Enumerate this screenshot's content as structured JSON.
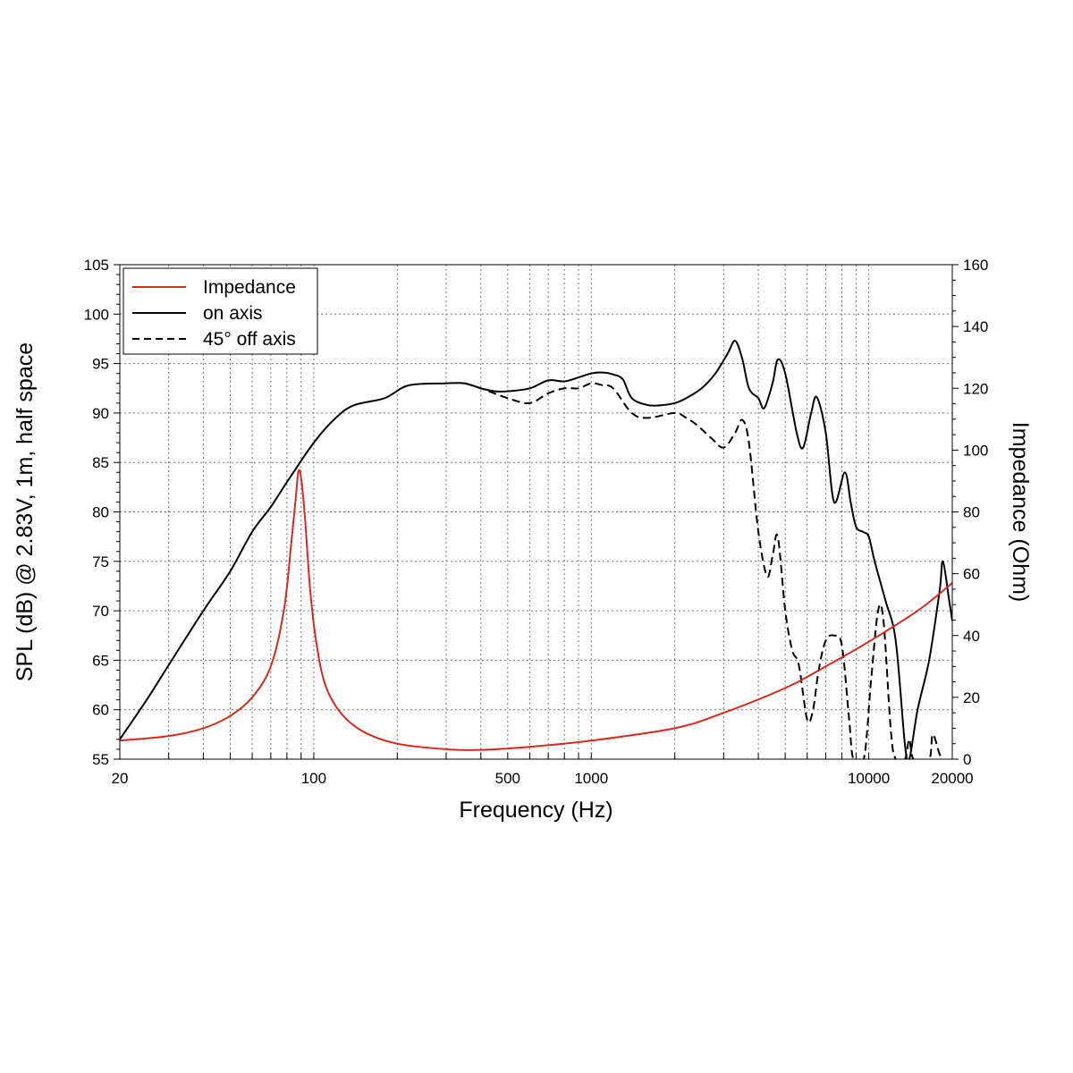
{
  "chart_data": {
    "type": "line",
    "xlabel": "Frequency (Hz)",
    "ylabel": "SPL (dB) @ 2.83V, 1m, half space",
    "y2label": "Impedance (Ohm)",
    "x_scale": "log",
    "xlim": [
      20,
      20000
    ],
    "ylim": [
      55,
      105
    ],
    "y2lim": [
      0,
      160
    ],
    "grid": true,
    "legend_position": "top-left",
    "x_tick_labels": [
      "20",
      "100",
      "500",
      "1000",
      "10000",
      "20000"
    ],
    "x_tick_values": [
      20,
      100,
      500,
      1000,
      10000,
      20000
    ],
    "y_tick_values": [
      55,
      60,
      65,
      70,
      75,
      80,
      85,
      90,
      95,
      100,
      105
    ],
    "y2_tick_values": [
      0,
      20,
      40,
      60,
      80,
      100,
      120,
      140,
      160
    ],
    "series": [
      {
        "name": "Impedance",
        "axis": "right",
        "color": "#d42a1f",
        "dash": "solid",
        "points": [
          [
            20,
            6
          ],
          [
            30,
            7.5
          ],
          [
            40,
            10
          ],
          [
            50,
            14
          ],
          [
            60,
            20
          ],
          [
            70,
            30
          ],
          [
            78,
            48
          ],
          [
            83,
            70
          ],
          [
            86,
            84
          ],
          [
            88,
            93
          ],
          [
            90,
            91
          ],
          [
            93,
            78
          ],
          [
            97,
            55
          ],
          [
            102,
            38
          ],
          [
            110,
            24
          ],
          [
            125,
            15
          ],
          [
            150,
            9
          ],
          [
            200,
            5
          ],
          [
            300,
            3.2
          ],
          [
            400,
            3
          ],
          [
            600,
            4
          ],
          [
            1000,
            6
          ],
          [
            2000,
            10
          ],
          [
            3000,
            15
          ],
          [
            5000,
            23
          ],
          [
            7000,
            30
          ],
          [
            10000,
            38
          ],
          [
            15000,
            48
          ],
          [
            20000,
            57
          ]
        ]
      },
      {
        "name": "on axis",
        "axis": "left",
        "color": "#000000",
        "dash": "solid",
        "points": [
          [
            20,
            57
          ],
          [
            25,
            61
          ],
          [
            30,
            64.5
          ],
          [
            40,
            70
          ],
          [
            50,
            74
          ],
          [
            60,
            78
          ],
          [
            70,
            80.5
          ],
          [
            80,
            83
          ],
          [
            100,
            87
          ],
          [
            120,
            89.5
          ],
          [
            140,
            90.8
          ],
          [
            180,
            91.5
          ],
          [
            220,
            92.8
          ],
          [
            300,
            93
          ],
          [
            350,
            93
          ],
          [
            400,
            92.5
          ],
          [
            450,
            92.2
          ],
          [
            500,
            92.2
          ],
          [
            600,
            92.5
          ],
          [
            700,
            93.3
          ],
          [
            800,
            93.2
          ],
          [
            900,
            93.6
          ],
          [
            1000,
            94
          ],
          [
            1100,
            94.1
          ],
          [
            1200,
            93.9
          ],
          [
            1300,
            93.4
          ],
          [
            1400,
            91.5
          ],
          [
            1600,
            90.8
          ],
          [
            1800,
            90.8
          ],
          [
            2000,
            91
          ],
          [
            2200,
            91.5
          ],
          [
            2500,
            92.5
          ],
          [
            2800,
            94
          ],
          [
            3100,
            96
          ],
          [
            3300,
            97.3
          ],
          [
            3500,
            95.5
          ],
          [
            3700,
            92.5
          ],
          [
            4000,
            91.5
          ],
          [
            4200,
            90.5
          ],
          [
            4500,
            93
          ],
          [
            4700,
            95.4
          ],
          [
            5000,
            94
          ],
          [
            5500,
            88
          ],
          [
            5800,
            86.5
          ],
          [
            6200,
            90
          ],
          [
            6500,
            91.6
          ],
          [
            7000,
            88
          ],
          [
            7500,
            81
          ],
          [
            8200,
            84
          ],
          [
            8600,
            81
          ],
          [
            9000,
            78.5
          ],
          [
            9500,
            78
          ],
          [
            10000,
            77.5
          ],
          [
            10500,
            75
          ],
          [
            11500,
            71
          ],
          [
            12500,
            67
          ],
          [
            13500,
            56.5
          ],
          [
            14000,
            55
          ],
          [
            15000,
            60
          ],
          [
            16500,
            65
          ],
          [
            18000,
            72
          ],
          [
            18500,
            75
          ],
          [
            19500,
            71
          ],
          [
            20000,
            69
          ]
        ]
      },
      {
        "name": "45° off axis",
        "axis": "left",
        "color": "#000000",
        "dash": "dashed",
        "points": [
          [
            350,
            93
          ],
          [
            400,
            92.5
          ],
          [
            500,
            91.5
          ],
          [
            600,
            91
          ],
          [
            700,
            92
          ],
          [
            800,
            92.5
          ],
          [
            900,
            92.5
          ],
          [
            1000,
            93
          ],
          [
            1100,
            92.8
          ],
          [
            1200,
            92.5
          ],
          [
            1400,
            90
          ],
          [
            1600,
            89.5
          ],
          [
            2000,
            90
          ],
          [
            2200,
            89.5
          ],
          [
            2400,
            88.8
          ],
          [
            2700,
            87.5
          ],
          [
            3000,
            86.5
          ],
          [
            3300,
            88
          ],
          [
            3500,
            89.3
          ],
          [
            3700,
            87
          ],
          [
            4000,
            78
          ],
          [
            4300,
            73.5
          ],
          [
            4500,
            75.5
          ],
          [
            4700,
            77.5
          ],
          [
            5000,
            70
          ],
          [
            5300,
            66
          ],
          [
            5600,
            64.5
          ],
          [
            6000,
            59
          ],
          [
            6300,
            60
          ],
          [
            6600,
            64
          ],
          [
            7000,
            67
          ],
          [
            7500,
            67.5
          ],
          [
            8000,
            66.5
          ],
          [
            8500,
            59
          ],
          [
            8800,
            55
          ],
          [
            9600,
            55
          ],
          [
            10200,
            63
          ],
          [
            10800,
            70
          ],
          [
            11300,
            69
          ],
          [
            12000,
            58
          ],
          [
            12500,
            55
          ],
          [
            13500,
            55
          ],
          [
            14000,
            57
          ],
          [
            14500,
            55
          ],
          [
            16500,
            55
          ],
          [
            17000,
            57.5
          ],
          [
            18000,
            55.5
          ],
          [
            18500,
            55
          ]
        ]
      }
    ]
  }
}
